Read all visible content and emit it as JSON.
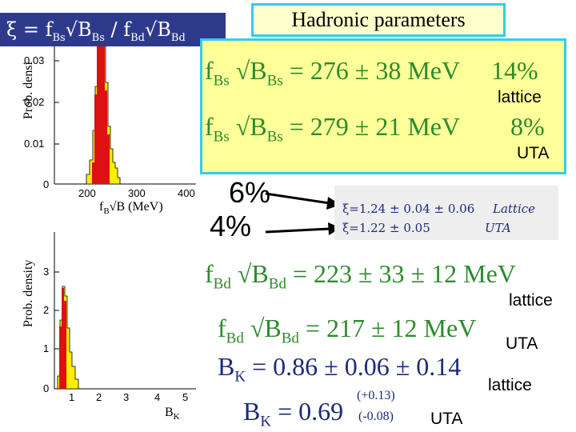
{
  "title": "Hadronic parameters",
  "xi_formula": {
    "text": "ξ = f",
    "sub1": "Bs",
    "mid1": "√B",
    "sub2": "Bs",
    "slash": " / f",
    "sub3": "Bd",
    "mid2": "√B",
    "sub4": "Bd"
  },
  "top_plot": {
    "ylabel": "Prob. densi",
    "yticks": [
      "0.03",
      "0.02",
      "0.01",
      "0"
    ],
    "xticks": [
      "200",
      "300",
      "400"
    ],
    "xlabel": "f",
    "xlabel_sub": "B",
    "xlabel_rest": "√B (MeV)"
  },
  "bottom_plot": {
    "ylabel": "Prob. density",
    "yticks": [
      "3",
      "2",
      "1",
      "0"
    ],
    "xticks": [
      "1",
      "2",
      "3",
      "4",
      "5"
    ],
    "xlabel": "B",
    "xlabel_sub": "K"
  },
  "fbs_lattice": {
    "pre": "f",
    "sub1": "Bs",
    "mid": " √B",
    "sub2": "Bs",
    "val": " = 276 ± 38 MeV",
    "pct": "14%",
    "tag": "lattice"
  },
  "fbs_uta": {
    "pre": "f",
    "sub1": "Bs",
    "mid": " √B",
    "sub2": "Bs",
    "val": " = 279 ± 21 MeV",
    "pct": "8%",
    "tag": "UTA"
  },
  "xi_pct": [
    "6%",
    "4%"
  ],
  "xi_table": [
    {
      "eq": "ξ=1.24 ± 0.04 ± 0.06",
      "tag": "Lattice"
    },
    {
      "eq": "ξ=1.22 ± 0.05",
      "tag": "UTA"
    }
  ],
  "fbd_lattice": {
    "pre": "f",
    "sub1": "Bd",
    "mid": " √B",
    "sub2": "Bd",
    "val": " = 223 ± 33 ± 12 MeV",
    "tag": "lattice"
  },
  "fbd_uta": {
    "pre": "f",
    "sub1": "Bd",
    "mid": " √B",
    "sub2": "Bd",
    "val": " = 217 ± 12 MeV",
    "tag": "UTA"
  },
  "bk_lattice": {
    "pre": "B",
    "sub": "K",
    "val": " = 0.86 ± 0.06 ± 0.14",
    "tag": "lattice"
  },
  "bk_uta": {
    "pre": "B",
    "sub": "K",
    "val": " = 0.69",
    "up": "(+0.13)",
    "down": "(-0.08)",
    "tag": "UTA"
  }
}
